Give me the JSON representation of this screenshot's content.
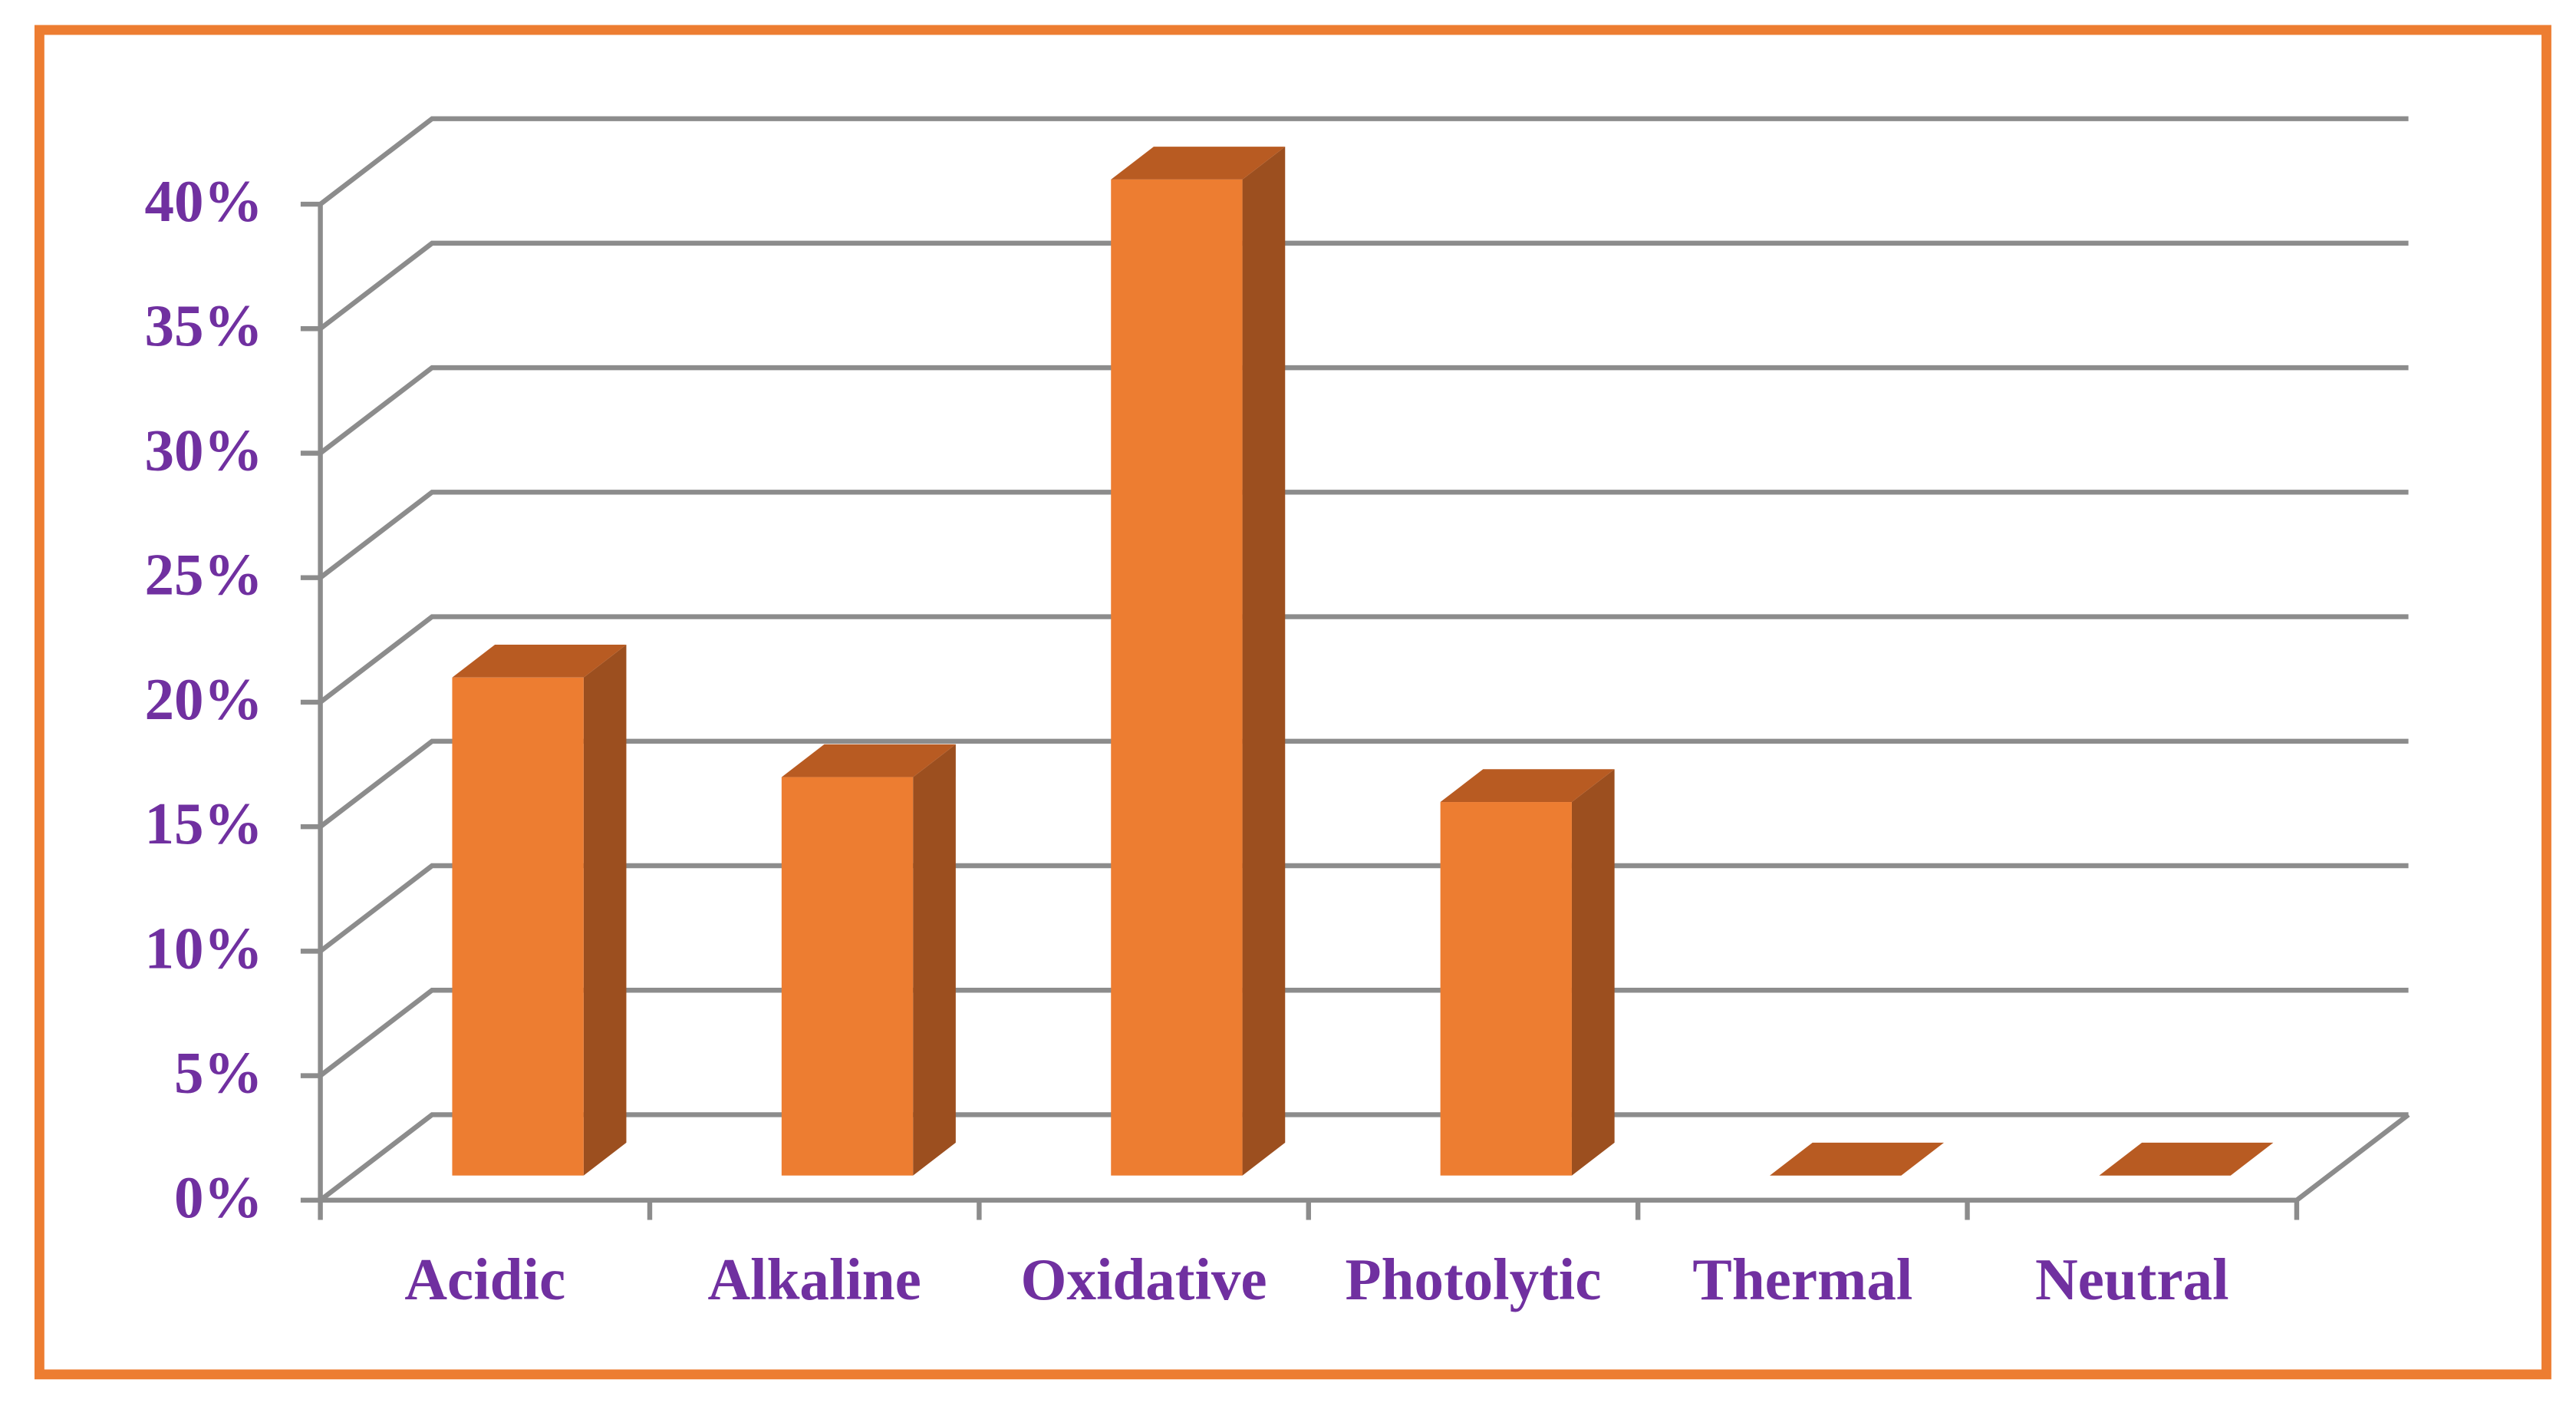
{
  "chart_data": {
    "type": "bar3d",
    "categories": [
      "Acidic",
      "Alkaline",
      "Oxidative",
      "Photolytic",
      "Thermal",
      "Neutral"
    ],
    "values": [
      20,
      16,
      40,
      15,
      0,
      0
    ],
    "color": "#ed7d31",
    "ylim": [
      0,
      40
    ],
    "yticks": [
      {
        "value": 0,
        "label": "0%"
      },
      {
        "value": 5,
        "label": "5%"
      },
      {
        "value": 10,
        "label": "10%"
      },
      {
        "value": 15,
        "label": "15%"
      },
      {
        "value": 20,
        "label": "20%"
      },
      {
        "value": 25,
        "label": "25%"
      },
      {
        "value": 30,
        "label": "30%"
      },
      {
        "value": 35,
        "label": "35%"
      },
      {
        "value": 40,
        "label": "40%"
      }
    ],
    "grid": true
  }
}
